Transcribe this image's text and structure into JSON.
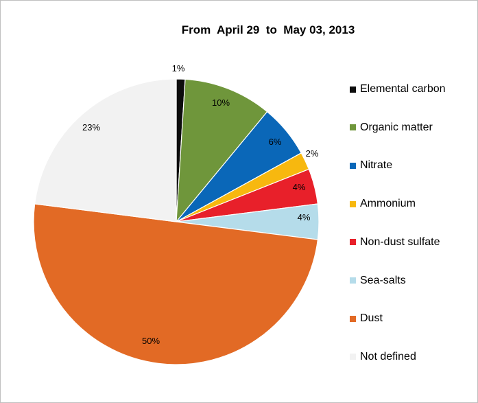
{
  "chart_data": {
    "type": "pie",
    "title": "From  April 29  to  May 03, 2013",
    "legend_position": "right",
    "slices": [
      {
        "label": "Elemental carbon",
        "value": 1,
        "data_label": "1%",
        "color": "#0d0d0d"
      },
      {
        "label": "Organic matter",
        "value": 10,
        "data_label": "10%",
        "color": "#6f963b"
      },
      {
        "label": "Nitrate",
        "value": 6,
        "data_label": "6%",
        "color": "#0a67b8"
      },
      {
        "label": "Ammonium",
        "value": 2,
        "data_label": "2%",
        "color": "#f7b80f"
      },
      {
        "label": "Non-dust sulfate",
        "value": 4,
        "data_label": "4%",
        "color": "#e8202a"
      },
      {
        "label": "Sea-salts",
        "value": 4,
        "data_label": "4%",
        "color": "#b5dcea"
      },
      {
        "label": "Dust",
        "value": 50,
        "data_label": "50%",
        "color": "#e26a25"
      },
      {
        "label": "Not defined",
        "value": 23,
        "data_label": "23%",
        "color": "#f2f2f2"
      }
    ]
  }
}
